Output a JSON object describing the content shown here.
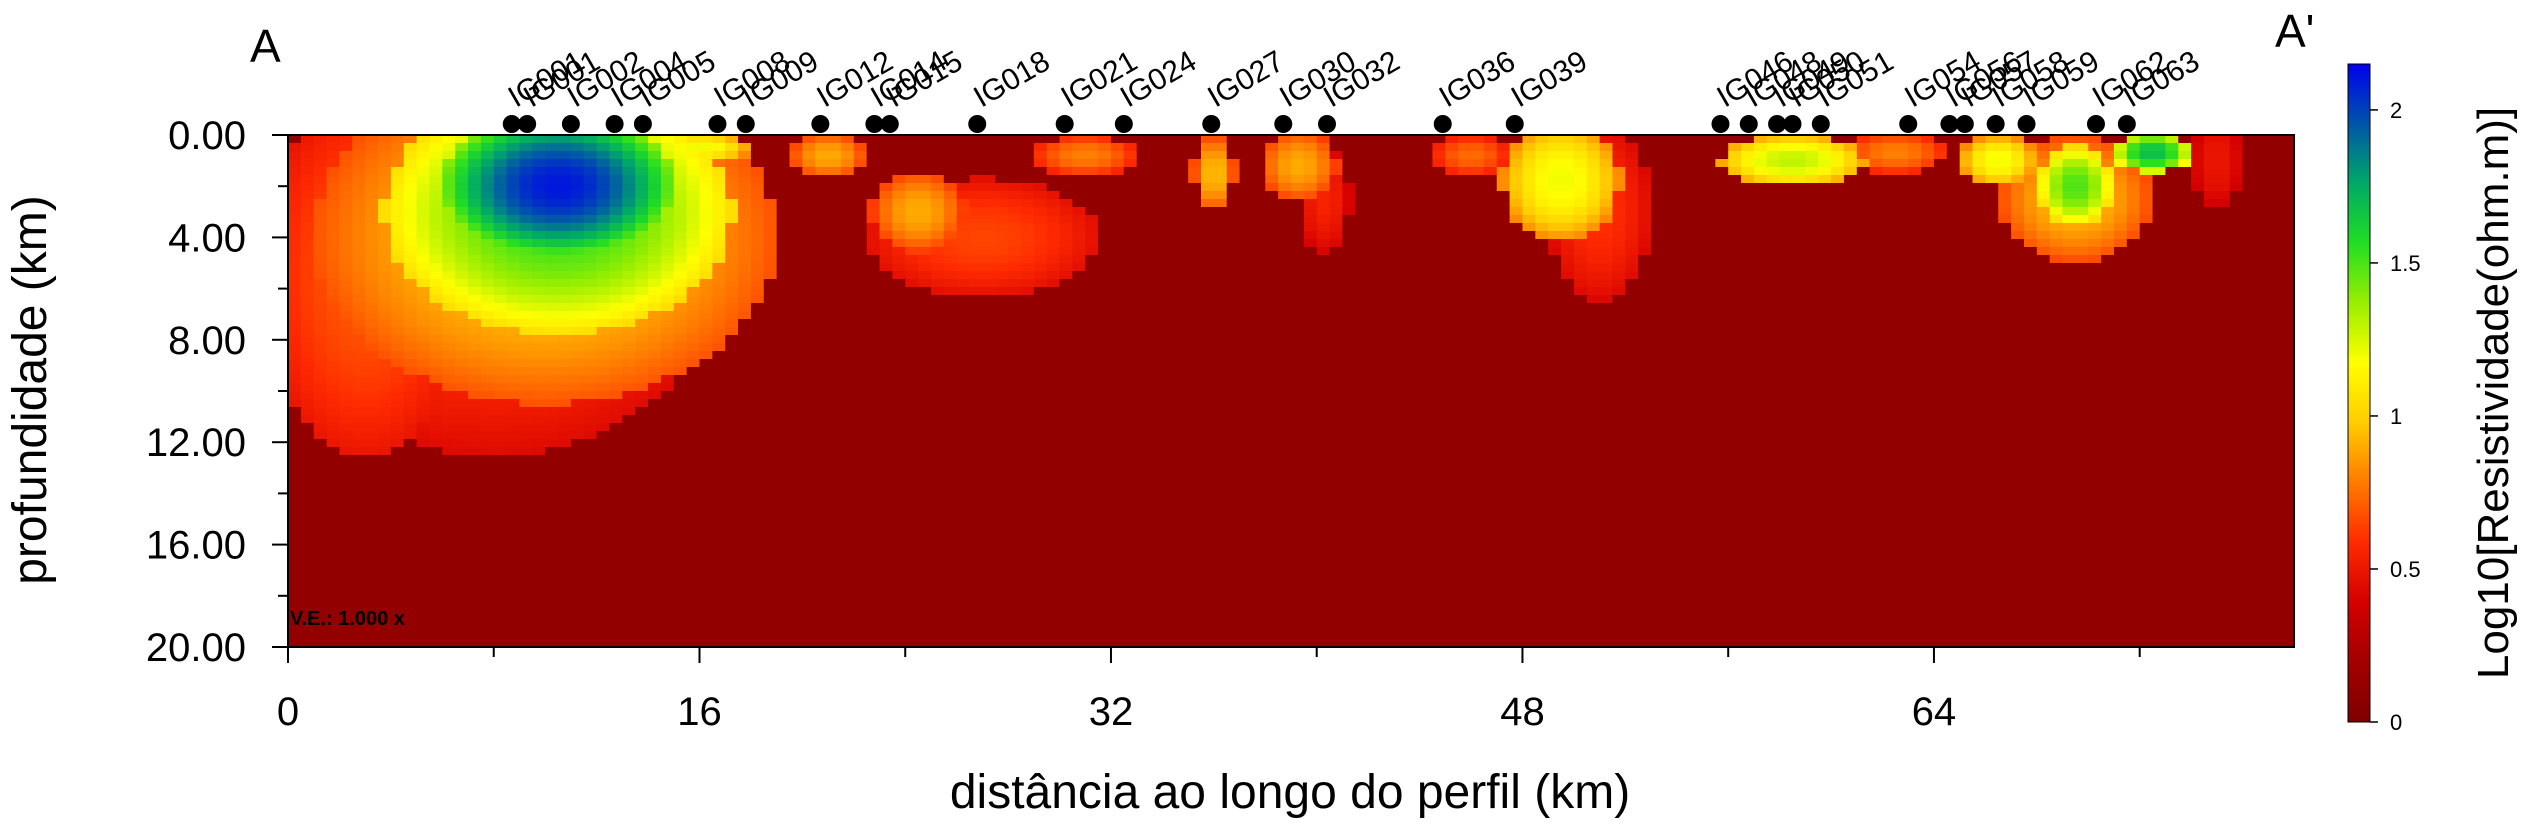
{
  "chart_data": {
    "type": "heatmap",
    "title": "",
    "section_start_label": "A",
    "section_end_label": "A'",
    "xlabel": "distância ao longo do perfil (km)",
    "ylabel": "profundidade (km)",
    "xlim": [
      0,
      78
    ],
    "ylim": [
      20,
      0
    ],
    "x_ticks": [
      0,
      16,
      32,
      48,
      64
    ],
    "x_tick_labels": [
      "0",
      "16",
      "32",
      "48",
      "64"
    ],
    "y_ticks": [
      0,
      4,
      8,
      12,
      16,
      20
    ],
    "y_tick_labels": [
      "0.00",
      "4.00",
      "8.00",
      "12.00",
      "16.00",
      "20.00"
    ],
    "annotation": "V.E.: 1.000 x",
    "colorbar": {
      "label": "Log10[Resistividade(ohm.m)]",
      "min": 0,
      "max": 2.15,
      "ticks": [
        0,
        0.5,
        1,
        1.5,
        2
      ],
      "tick_labels": [
        "0",
        "0.5",
        "1",
        "1.5",
        "2"
      ],
      "colors": [
        "#800000",
        "#a40000",
        "#d40000",
        "#ff2a00",
        "#ff7a00",
        "#ffcc00",
        "#ffff00",
        "#99ee00",
        "#22dd22",
        "#00aa66",
        "#0055aa",
        "#0000ee"
      ]
    },
    "background_value": 0.1,
    "anomalies": [
      {
        "x": 10.5,
        "z": 2.0,
        "rx": 4.5,
        "rz": 2.8,
        "value": 2.1
      },
      {
        "x": 10.5,
        "z": 3.0,
        "rx": 6.8,
        "rz": 4.8,
        "value": 1.55
      },
      {
        "x": 10.0,
        "z": 4.0,
        "rx": 9.0,
        "rz": 6.5,
        "value": 1.0
      },
      {
        "x": 8.0,
        "z": 5.0,
        "rx": 9.0,
        "rz": 7.5,
        "value": 0.62
      },
      {
        "x": 3.0,
        "z": 5.5,
        "rx": 4.0,
        "rz": 7.0,
        "value": 0.7
      },
      {
        "x": 27.0,
        "z": 4.0,
        "rx": 4.5,
        "rz": 2.3,
        "value": 0.65
      },
      {
        "x": 24.5,
        "z": 3.0,
        "rx": 1.8,
        "rz": 1.6,
        "value": 0.9
      },
      {
        "x": 49.5,
        "z": 1.8,
        "rx": 2.3,
        "rz": 2.3,
        "value": 1.2
      },
      {
        "x": 51.0,
        "z": 3.0,
        "rx": 2.0,
        "rz": 3.5,
        "value": 0.6
      },
      {
        "x": 69.5,
        "z": 2.0,
        "rx": 1.5,
        "rz": 1.6,
        "value": 1.5
      },
      {
        "x": 69.5,
        "z": 2.5,
        "rx": 3.0,
        "rz": 2.5,
        "value": 0.95
      },
      {
        "x": 36.0,
        "z": 1.5,
        "rx": 0.8,
        "rz": 1.5,
        "value": 0.95
      },
      {
        "x": 39.3,
        "z": 1.2,
        "rx": 1.5,
        "rz": 1.4,
        "value": 0.9
      },
      {
        "x": 40.3,
        "z": 2.5,
        "rx": 1.0,
        "rz": 2.2,
        "value": 0.55
      },
      {
        "x": 58.5,
        "z": 1.0,
        "rx": 2.8,
        "rz": 1.0,
        "value": 1.3
      },
      {
        "x": 66.5,
        "z": 1.0,
        "rx": 1.5,
        "rz": 1.0,
        "value": 1.2
      },
      {
        "x": 72.5,
        "z": 0.7,
        "rx": 1.5,
        "rz": 0.8,
        "value": 1.7
      },
      {
        "x": 21.0,
        "z": 0.8,
        "rx": 1.5,
        "rz": 0.9,
        "value": 0.9
      },
      {
        "x": 31.0,
        "z": 0.8,
        "rx": 2.0,
        "rz": 0.8,
        "value": 0.8
      },
      {
        "x": 46.0,
        "z": 0.8,
        "rx": 1.5,
        "rz": 0.8,
        "value": 0.75
      },
      {
        "x": 16.0,
        "z": 0.5,
        "rx": 2.0,
        "rz": 0.6,
        "value": 1.2
      },
      {
        "x": 62.5,
        "z": 0.7,
        "rx": 2.0,
        "rz": 0.8,
        "value": 0.8
      },
      {
        "x": 75.0,
        "z": 1.0,
        "rx": 1.0,
        "rz": 2.0,
        "value": 0.5
      }
    ],
    "stations": [
      {
        "name": "IG001",
        "x": 8.7
      },
      {
        "name": "IG001",
        "x": 9.3
      },
      {
        "name": "IG002",
        "x": 11.0
      },
      {
        "name": "IG004",
        "x": 12.7
      },
      {
        "name": "IG005",
        "x": 13.8
      },
      {
        "name": "IG008",
        "x": 16.7
      },
      {
        "name": "IG009",
        "x": 17.8
      },
      {
        "name": "IG012",
        "x": 20.7
      },
      {
        "name": "IG014",
        "x": 22.8
      },
      {
        "name": "IG015",
        "x": 23.4
      },
      {
        "name": "IG018",
        "x": 26.8
      },
      {
        "name": "IG021",
        "x": 30.2
      },
      {
        "name": "IG024",
        "x": 32.5
      },
      {
        "name": "IG027",
        "x": 35.9
      },
      {
        "name": "IG030",
        "x": 38.7
      },
      {
        "name": "IG032",
        "x": 40.4
      },
      {
        "name": "IG036",
        "x": 44.9
      },
      {
        "name": "IG039",
        "x": 47.7
      },
      {
        "name": "IG046",
        "x": 55.7
      },
      {
        "name": "IG048",
        "x": 56.8
      },
      {
        "name": "IG049",
        "x": 57.9
      },
      {
        "name": "IG050",
        "x": 58.5
      },
      {
        "name": "IG051",
        "x": 59.6
      },
      {
        "name": "IG054",
        "x": 63.0
      },
      {
        "name": "IG056",
        "x": 64.6
      },
      {
        "name": "IG057",
        "x": 65.2
      },
      {
        "name": "IG058",
        "x": 66.4
      },
      {
        "name": "IG059",
        "x": 67.6
      },
      {
        "name": "IG062",
        "x": 70.3
      },
      {
        "name": "IG063",
        "x": 71.5
      }
    ]
  }
}
